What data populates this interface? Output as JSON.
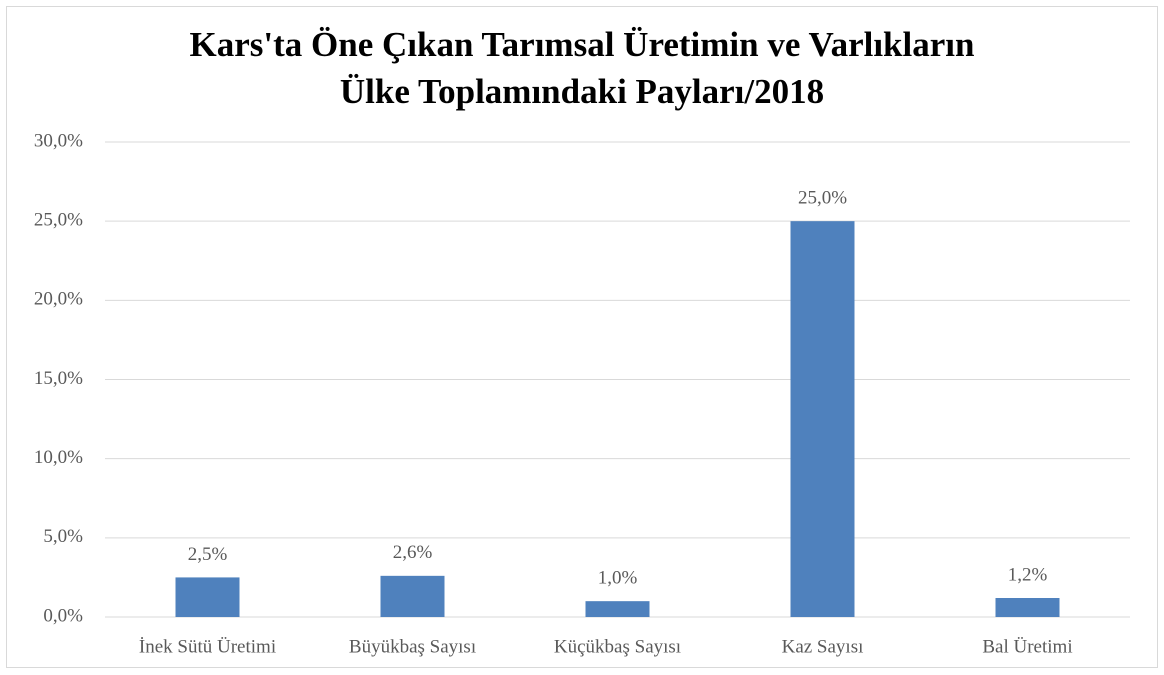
{
  "chart_data": {
    "type": "bar",
    "title": [
      "Kars'ta Öne Çıkan Tarımsal Üretimin ve Varlıkların",
      "Ülke Toplamındaki Payları/2018"
    ],
    "categories": [
      "İnek Sütü Üretimi",
      "Büyükbaş Sayısı",
      "Küçükbaş Sayısı",
      "Kaz Sayısı",
      "Bal Üretimi"
    ],
    "values": [
      2.5,
      2.6,
      1.0,
      25.0,
      1.2
    ],
    "value_labels": [
      "2,5%",
      "2,6%",
      "1,0%",
      "25,0%",
      "1,2%"
    ],
    "color": "#4f81bd",
    "ylim": [
      0,
      30
    ],
    "yticks": [
      {
        "value": 0,
        "label": "0,0%"
      },
      {
        "value": 5,
        "label": "5,0%"
      },
      {
        "value": 10,
        "label": "10,0%"
      },
      {
        "value": 15,
        "label": "15,0%"
      },
      {
        "value": 20,
        "label": "20,0%"
      },
      {
        "value": 25,
        "label": "25,0%"
      },
      {
        "value": 30,
        "label": "30,0%"
      }
    ],
    "grid": true
  }
}
